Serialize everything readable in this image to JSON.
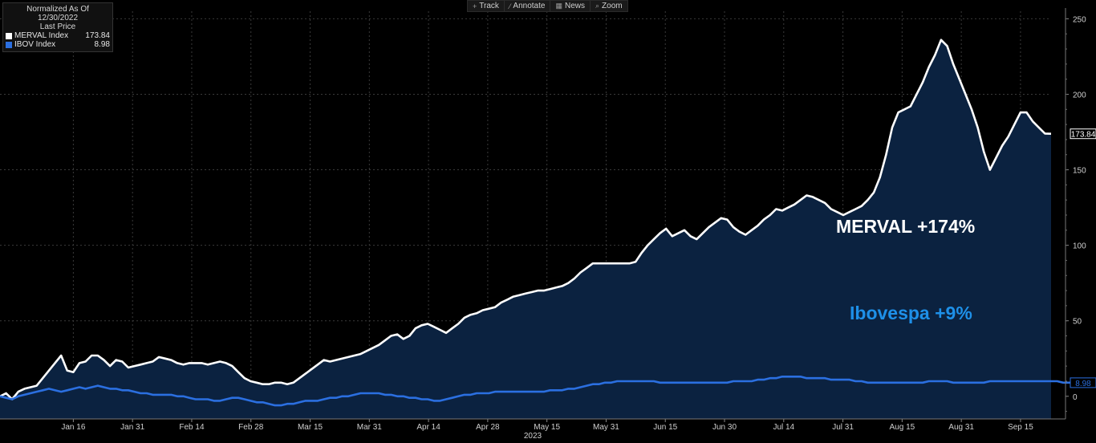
{
  "toolbar": [
    {
      "label": "Track",
      "icon": "crosshair-icon",
      "glyph": "+"
    },
    {
      "label": "Annotate",
      "icon": "pencil-icon",
      "glyph": "⁄"
    },
    {
      "label": "News",
      "icon": "news-icon",
      "glyph": "▦"
    },
    {
      "label": "Zoom",
      "icon": "magnifier-icon",
      "glyph": "⌕"
    }
  ],
  "legend": {
    "header1": "Normalized As Of 12/30/2022",
    "header2": "Last Price",
    "items": [
      {
        "name": "MERVAL Index",
        "value": "173.84",
        "color": "#ffffff"
      },
      {
        "name": "IBOV Index",
        "value": "8.98",
        "color": "#2b6fe0"
      }
    ]
  },
  "annotations": {
    "merval": "MERVAL +174%",
    "ibov": "Ibovespa +9%"
  },
  "chart_data": {
    "type": "area",
    "x_ticks": [
      "Jan 16",
      "Jan 31",
      "Feb 14",
      "Feb 28",
      "Mar 15",
      "Mar 31",
      "Apr 14",
      "Apr 28",
      "May 15",
      "May 31",
      "Jun 15",
      "Jun 30",
      "Jul 14",
      "Jul 31",
      "Aug 15",
      "Aug 31",
      "Sep 15"
    ],
    "x_axis_year": "2023",
    "ylim": [
      -15,
      255
    ],
    "y_ticks": [
      0,
      50,
      100,
      150,
      200,
      250
    ],
    "grid": true,
    "series": [
      {
        "name": "MERVAL Index",
        "color": "#ffffff",
        "fill": "#0b2240",
        "last_label": "173.84",
        "values": [
          0,
          2,
          -2,
          3,
          5,
          6,
          7,
          12,
          17,
          22,
          27,
          17,
          16,
          22,
          23,
          27,
          27,
          24,
          20,
          24,
          23,
          19,
          20,
          21,
          22,
          23,
          26,
          25,
          24,
          22,
          21,
          22,
          22,
          22,
          21,
          22,
          23,
          22,
          20,
          16,
          12,
          10,
          9,
          8,
          8,
          9,
          9,
          8,
          9,
          12,
          15,
          18,
          21,
          24,
          23,
          24,
          25,
          26,
          27,
          28,
          30,
          32,
          34,
          37,
          40,
          41,
          38,
          40,
          45,
          47,
          48,
          46,
          44,
          42,
          45,
          48,
          52,
          54,
          55,
          57,
          58,
          59,
          62,
          64,
          66,
          67,
          68,
          69,
          70,
          70,
          71,
          72,
          73,
          75,
          78,
          82,
          85,
          88,
          88,
          88,
          88,
          88,
          88,
          88,
          89,
          95,
          100,
          104,
          108,
          111,
          106,
          108,
          110,
          106,
          104,
          108,
          112,
          115,
          118,
          117,
          112,
          109,
          107,
          110,
          113,
          117,
          120,
          124,
          123,
          125,
          127,
          130,
          133,
          132,
          130,
          128,
          124,
          122,
          120,
          122,
          124,
          126,
          130,
          135,
          145,
          160,
          178,
          188,
          190,
          192,
          200,
          208,
          218,
          226,
          236,
          232,
          220,
          210,
          200,
          190,
          178,
          162,
          150,
          158,
          166,
          172,
          180,
          188,
          188,
          182,
          178,
          174,
          173.84
        ]
      },
      {
        "name": "IBOV Index",
        "color": "#2b6fe0",
        "last_label": "8.98",
        "values": [
          0,
          -1,
          -2,
          0,
          1,
          2,
          3,
          4,
          5,
          4,
          3,
          4,
          5,
          6,
          5,
          6,
          7,
          6,
          5,
          5,
          4,
          4,
          3,
          2,
          2,
          1,
          1,
          1,
          1,
          0,
          0,
          -1,
          -2,
          -2,
          -2,
          -3,
          -3,
          -2,
          -1,
          -1,
          -2,
          -3,
          -4,
          -4,
          -5,
          -6,
          -6,
          -5,
          -5,
          -4,
          -3,
          -3,
          -3,
          -2,
          -1,
          -1,
          0,
          0,
          1,
          2,
          2,
          2,
          2,
          1,
          1,
          0,
          0,
          -1,
          -1,
          -2,
          -2,
          -3,
          -3,
          -2,
          -1,
          0,
          1,
          1,
          2,
          2,
          2,
          3,
          3,
          3,
          3,
          3,
          3,
          3,
          3,
          3,
          4,
          4,
          4,
          5,
          5,
          6,
          7,
          8,
          8,
          9,
          9,
          10,
          10,
          10,
          10,
          10,
          10,
          10,
          9,
          9,
          9,
          9,
          9,
          9,
          9,
          9,
          9,
          9,
          9,
          9,
          10,
          10,
          10,
          10,
          11,
          11,
          12,
          12,
          13,
          13,
          13,
          13,
          12,
          12,
          12,
          12,
          11,
          11,
          11,
          11,
          10,
          10,
          9,
          9,
          9,
          9,
          9,
          9,
          9,
          9,
          9,
          9,
          10,
          10,
          10,
          10,
          9,
          9,
          9,
          9,
          9,
          9,
          10,
          10,
          10,
          10,
          10,
          10,
          10,
          10,
          10,
          10,
          10,
          10,
          9,
          9,
          9,
          9,
          8.98
        ]
      }
    ]
  }
}
